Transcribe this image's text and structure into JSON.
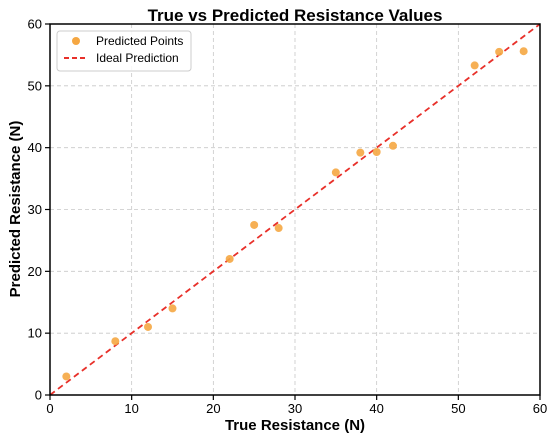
{
  "chart_data": {
    "type": "scatter",
    "title": "True vs Predicted Resistance Values",
    "xlabel": "True Resistance (N)",
    "ylabel": "Predicted Resistance (N)",
    "xlim": [
      0,
      60
    ],
    "ylim": [
      0,
      60
    ],
    "xticks": [
      "0",
      "10",
      "20",
      "30",
      "40",
      "50",
      "60"
    ],
    "yticks": [
      "0",
      "10",
      "20",
      "30",
      "40",
      "50",
      "60"
    ],
    "grid": true,
    "legend_position": "top-left",
    "series": [
      {
        "name": "Predicted Points",
        "kind": "scatter",
        "color": "#f5a742",
        "points": [
          {
            "x": 2,
            "y": 3
          },
          {
            "x": 8,
            "y": 8.7
          },
          {
            "x": 12,
            "y": 11
          },
          {
            "x": 15,
            "y": 14
          },
          {
            "x": 22,
            "y": 22
          },
          {
            "x": 25,
            "y": 27.5
          },
          {
            "x": 28,
            "y": 27
          },
          {
            "x": 35,
            "y": 36
          },
          {
            "x": 38,
            "y": 39.2
          },
          {
            "x": 40,
            "y": 39.3
          },
          {
            "x": 42,
            "y": 40.3
          },
          {
            "x": 52,
            "y": 53.3
          },
          {
            "x": 55,
            "y": 55.5
          },
          {
            "x": 58,
            "y": 55.6
          }
        ]
      },
      {
        "name": "Ideal Prediction",
        "kind": "line",
        "style": "dashed",
        "color": "#e8302a",
        "points": [
          {
            "x": 0,
            "y": 0
          },
          {
            "x": 60,
            "y": 60
          }
        ]
      }
    ]
  }
}
